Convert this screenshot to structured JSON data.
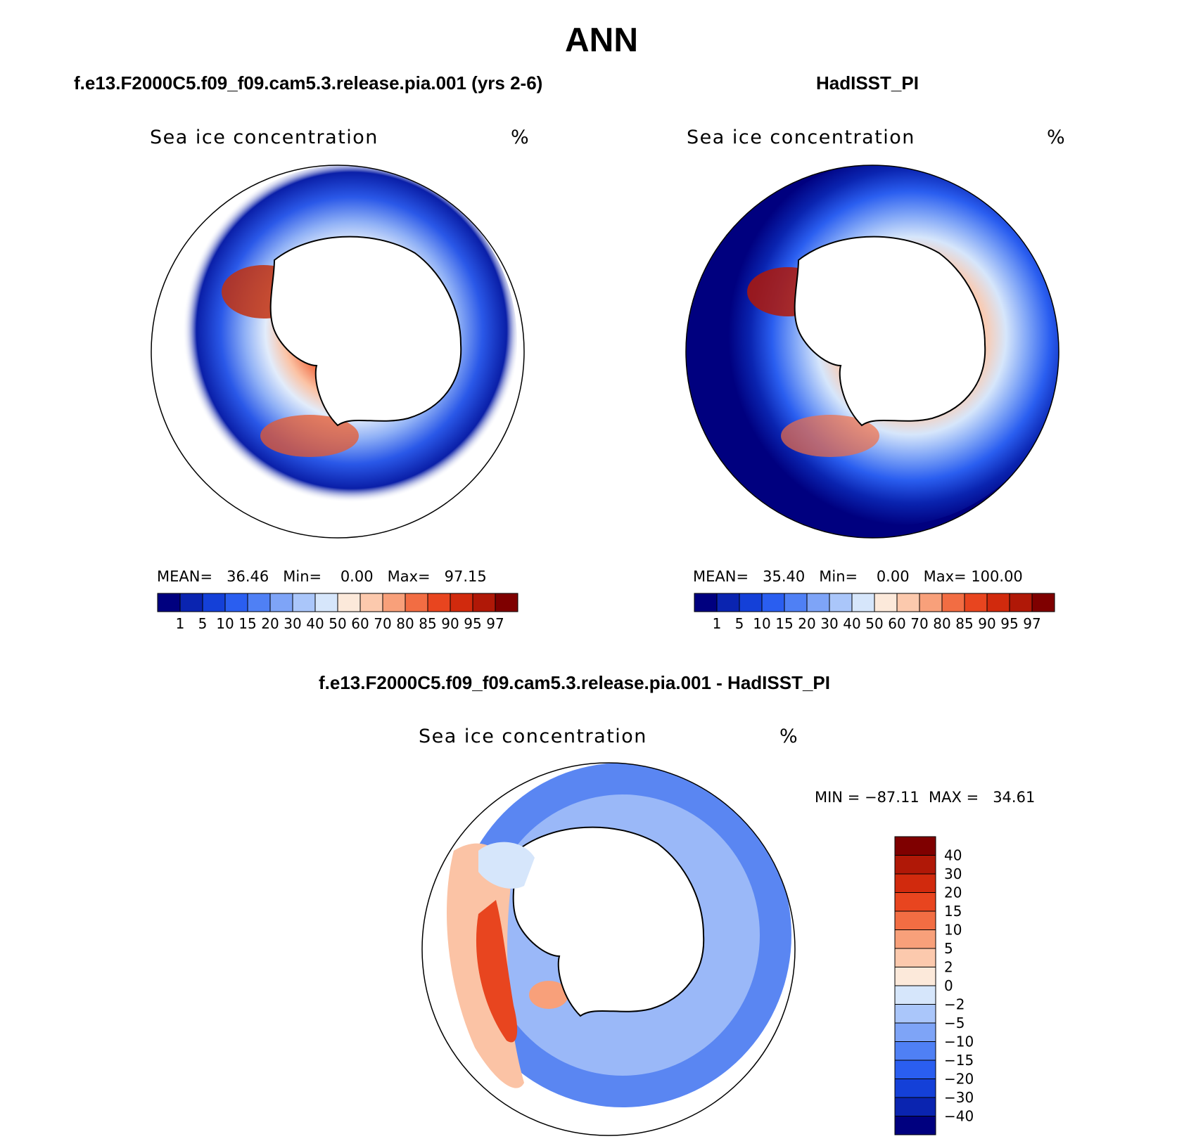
{
  "figure": {
    "title": "ANN"
  },
  "panels": [
    {
      "title": "f.e13.F2000C5.f09_f09.cam5.3.release.pia.001 (yrs 2-6)",
      "field_label": "Sea ice concentration",
      "unit": "%",
      "stats": {
        "mean_label": "MEAN=",
        "mean": "36.46",
        "min_label": "Min=",
        "min": "0.00",
        "max_label": "Max=",
        "max": "97.15"
      }
    },
    {
      "title": "HadISST_PI",
      "field_label": "Sea ice concentration",
      "unit": "%",
      "stats": {
        "mean_label": "MEAN=",
        "mean": "35.40",
        "min_label": "Min=",
        "min": "0.00",
        "max_label": "Max=",
        "max": "100.00"
      }
    }
  ],
  "diff_panel": {
    "title": "f.e13.F2000C5.f09_f09.cam5.3.release.pia.001 - HadISST_PI",
    "field_label": "Sea ice concentration",
    "unit": "%",
    "minmax": "MIN = −87.11  MAX =   34.61"
  },
  "colorbar_abs": {
    "ticks": [
      "1",
      "5",
      "10",
      "15",
      "20",
      "30",
      "40",
      "50",
      "60",
      "70",
      "80",
      "85",
      "90",
      "95",
      "97"
    ],
    "colors": [
      "#00007f",
      "#0a24b0",
      "#1440d8",
      "#2a5ef0",
      "#4f80f5",
      "#7ea4f7",
      "#aac6fa",
      "#d6e6fb",
      "#fce9da",
      "#fcc9ad",
      "#f8a07a",
      "#f26d43",
      "#e8451f",
      "#d12a0d",
      "#b01807",
      "#7f0000"
    ]
  },
  "colorbar_diff": {
    "ticks": [
      "40",
      "30",
      "20",
      "15",
      "10",
      "5",
      "2",
      "0",
      "−2",
      "−5",
      "−10",
      "−15",
      "−20",
      "−30",
      "−40"
    ],
    "colors": [
      "#7f0000",
      "#b01807",
      "#d12a0d",
      "#e8451f",
      "#f26d43",
      "#f8a07a",
      "#fcc9ad",
      "#fce9da",
      "#d6e6fb",
      "#aac6fa",
      "#7ea4f7",
      "#4f80f5",
      "#2a5ef0",
      "#1440d8",
      "#0a24b0",
      "#00007f"
    ]
  }
}
